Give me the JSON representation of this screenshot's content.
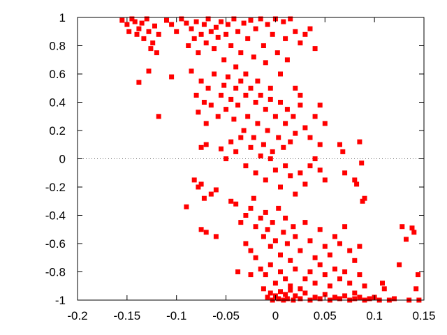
{
  "chart_data": {
    "type": "scatter",
    "title": "",
    "xlabel": "",
    "ylabel": "",
    "xlim": [
      -0.2,
      0.15
    ],
    "ylim": [
      -1,
      1
    ],
    "grid": false,
    "zero_line": true,
    "x_ticks": [
      "-0.2",
      "-0.15",
      "-0.1",
      "-0.05",
      "0",
      "0.05",
      "0.1",
      "0.15"
    ],
    "y_ticks": [
      "1",
      "0.8",
      "0.6",
      "0.4",
      "0.2",
      "0",
      "-0.2",
      "-0.4",
      "-0.6",
      "-0.8",
      "-1"
    ],
    "marker": "square",
    "color": "#ff0000",
    "series": [
      {
        "points": [
          [
            -0.155,
            0.98
          ],
          [
            -0.15,
            0.95
          ],
          [
            -0.148,
            0.9
          ],
          [
            -0.145,
            0.99
          ],
          [
            -0.142,
            0.97
          ],
          [
            -0.14,
            0.88
          ],
          [
            -0.138,
            0.92
          ],
          [
            -0.135,
            0.96
          ],
          [
            -0.133,
            0.85
          ],
          [
            -0.13,
            0.99
          ],
          [
            -0.128,
            0.9
          ],
          [
            -0.126,
            0.78
          ],
          [
            -0.124,
            0.82
          ],
          [
            -0.122,
            0.94
          ],
          [
            -0.12,
            0.75
          ],
          [
            -0.118,
            0.88
          ],
          [
            -0.11,
            0.98
          ],
          [
            -0.105,
            0.95
          ],
          [
            -0.1,
            0.9
          ],
          [
            -0.095,
            0.99
          ],
          [
            -0.09,
            0.96
          ],
          [
            -0.088,
            0.8
          ],
          [
            -0.085,
            0.92
          ],
          [
            -0.082,
            0.85
          ],
          [
            -0.08,
            0.97
          ],
          [
            -0.078,
            0.75
          ],
          [
            -0.075,
            0.88
          ],
          [
            -0.072,
            0.95
          ],
          [
            -0.07,
            0.82
          ],
          [
            -0.068,
            0.99
          ],
          [
            -0.065,
            0.9
          ],
          [
            -0.062,
            0.78
          ],
          [
            -0.06,
            0.93
          ],
          [
            -0.058,
            0.86
          ],
          [
            -0.055,
            0.97
          ],
          [
            -0.052,
            0.7
          ],
          [
            -0.05,
            0.88
          ],
          [
            -0.048,
            0.95
          ],
          [
            -0.045,
            0.8
          ],
          [
            -0.042,
            0.99
          ],
          [
            -0.04,
            0.65
          ],
          [
            -0.038,
            0.9
          ],
          [
            -0.035,
            0.75
          ],
          [
            -0.032,
            0.96
          ],
          [
            -0.03,
            0.6
          ],
          [
            -0.028,
            0.85
          ],
          [
            -0.025,
            0.98
          ],
          [
            -0.022,
            0.72
          ],
          [
            -0.02,
            0.92
          ],
          [
            -0.018,
            0.55
          ],
          [
            -0.015,
            0.99
          ],
          [
            -0.012,
            0.8
          ],
          [
            -0.01,
            0.68
          ],
          [
            -0.008,
            0.95
          ],
          [
            -0.005,
            0.5
          ],
          [
            -0.003,
            0.88
          ],
          [
            0.0,
            0.99
          ],
          [
            0.002,
            0.75
          ],
          [
            0.005,
            0.6
          ],
          [
            0.008,
            0.97
          ],
          [
            0.01,
            0.85
          ],
          [
            0.012,
            0.7
          ],
          [
            0.015,
            0.99
          ],
          [
            0.02,
            0.9
          ],
          [
            0.025,
            0.82
          ],
          [
            0.03,
            0.88
          ],
          [
            0.035,
            0.92
          ],
          [
            0.04,
            0.78
          ],
          [
            -0.138,
            0.54
          ],
          [
            -0.128,
            0.62
          ],
          [
            -0.118,
            0.3
          ],
          [
            -0.105,
            0.58
          ],
          [
            -0.085,
            0.62
          ],
          [
            -0.08,
            0.45
          ],
          [
            -0.078,
            0.33
          ],
          [
            -0.075,
            0.55
          ],
          [
            -0.072,
            0.4
          ],
          [
            -0.07,
            0.25
          ],
          [
            -0.068,
            0.5
          ],
          [
            -0.065,
            0.38
          ],
          [
            -0.062,
            0.6
          ],
          [
            -0.058,
            0.3
          ],
          [
            -0.055,
            0.45
          ],
          [
            -0.052,
            0.52
          ],
          [
            -0.05,
            0.35
          ],
          [
            -0.048,
            0.58
          ],
          [
            -0.045,
            0.42
          ],
          [
            -0.042,
            0.28
          ],
          [
            -0.04,
            0.5
          ],
          [
            -0.038,
            0.38
          ],
          [
            -0.035,
            0.55
          ],
          [
            -0.032,
            0.2
          ],
          [
            -0.03,
            0.45
          ],
          [
            -0.028,
            0.3
          ],
          [
            -0.025,
            0.5
          ],
          [
            -0.022,
            0.15
          ],
          [
            -0.02,
            0.4
          ],
          [
            -0.018,
            0.25
          ],
          [
            -0.015,
            0.45
          ],
          [
            -0.012,
            0.1
          ],
          [
            -0.01,
            0.35
          ],
          [
            -0.008,
            0.2
          ],
          [
            -0.005,
            0.42
          ],
          [
            -0.003,
            0.05
          ],
          [
            0.0,
            0.3
          ],
          [
            0.003,
            0.15
          ],
          [
            0.005,
            0.4
          ],
          [
            0.008,
            0.08
          ],
          [
            0.01,
            0.25
          ],
          [
            0.012,
            0.35
          ],
          [
            0.015,
            0.12
          ],
          [
            0.018,
            0.3
          ],
          [
            0.02,
            0.18
          ],
          [
            0.025,
            0.38
          ],
          [
            0.03,
            0.22
          ],
          [
            0.035,
            0.15
          ],
          [
            0.04,
            0.3
          ],
          [
            0.045,
            0.1
          ],
          [
            0.05,
            0.25
          ],
          [
            0.045,
            0.38
          ],
          [
            0.025,
            0.45
          ],
          [
            0.02,
            0.5
          ],
          [
            -0.075,
            0.08
          ],
          [
            -0.07,
            0.1
          ],
          [
            -0.055,
            0.07
          ],
          [
            -0.05,
            0.0
          ],
          [
            -0.045,
            0.12
          ],
          [
            -0.04,
            0.05
          ],
          [
            -0.035,
            0.15
          ],
          [
            -0.03,
            -0.05
          ],
          [
            -0.025,
            0.08
          ],
          [
            -0.02,
            -0.1
          ],
          [
            -0.015,
            0.02
          ],
          [
            -0.01,
            -0.15
          ],
          [
            -0.005,
            0.0
          ],
          [
            0.0,
            -0.08
          ],
          [
            0.005,
            -0.2
          ],
          [
            0.01,
            -0.05
          ],
          [
            0.015,
            -0.12
          ],
          [
            0.02,
            -0.25
          ],
          [
            0.025,
            -0.1
          ],
          [
            0.03,
            -0.18
          ],
          [
            0.035,
            -0.05
          ],
          [
            0.04,
            0.0
          ],
          [
            0.045,
            -0.08
          ],
          [
            0.05,
            -0.15
          ],
          [
            0.065,
            0.1
          ],
          [
            0.068,
            0.05
          ],
          [
            0.07,
            -0.1
          ],
          [
            0.08,
            -0.15
          ],
          [
            0.085,
            0.12
          ],
          [
            0.087,
            -0.03
          ],
          [
            0.082,
            -0.18
          ],
          [
            -0.082,
            -0.15
          ],
          [
            -0.078,
            -0.2
          ],
          [
            -0.075,
            -0.18
          ],
          [
            -0.072,
            -0.28
          ],
          [
            -0.065,
            -0.25
          ],
          [
            -0.06,
            -0.22
          ],
          [
            -0.045,
            -0.3
          ],
          [
            -0.04,
            -0.32
          ],
          [
            -0.035,
            -0.45
          ],
          [
            -0.03,
            -0.4
          ],
          [
            -0.025,
            -0.35
          ],
          [
            -0.022,
            -0.28
          ],
          [
            -0.02,
            -0.48
          ],
          [
            -0.015,
            -0.42
          ],
          [
            -0.012,
            -0.55
          ],
          [
            -0.01,
            -0.38
          ],
          [
            -0.008,
            -0.5
          ],
          [
            -0.005,
            -0.62
          ],
          [
            -0.003,
            -0.45
          ],
          [
            0.0,
            -0.58
          ],
          [
            0.003,
            -0.35
          ],
          [
            0.005,
            -0.68
          ],
          [
            0.008,
            -0.52
          ],
          [
            0.01,
            -0.42
          ],
          [
            0.012,
            -0.6
          ],
          [
            0.015,
            -0.72
          ],
          [
            0.018,
            -0.48
          ],
          [
            0.02,
            -0.55
          ],
          [
            0.025,
            -0.65
          ],
          [
            0.03,
            -0.45
          ],
          [
            0.035,
            -0.58
          ],
          [
            0.04,
            -0.7
          ],
          [
            0.045,
            -0.5
          ],
          [
            0.05,
            -0.62
          ],
          [
            0.055,
            -0.68
          ],
          [
            0.06,
            -0.55
          ],
          [
            0.065,
            -0.6
          ],
          [
            0.07,
            -0.48
          ],
          [
            0.075,
            -0.65
          ],
          [
            0.08,
            -0.72
          ],
          [
            0.085,
            -0.62
          ],
          [
            0.088,
            -0.3
          ],
          [
            0.09,
            -0.28
          ],
          [
            -0.09,
            -0.34
          ],
          [
            -0.075,
            -0.5
          ],
          [
            -0.07,
            -0.52
          ],
          [
            -0.06,
            -0.55
          ],
          [
            -0.03,
            -0.6
          ],
          [
            -0.025,
            -0.65
          ],
          [
            -0.02,
            -0.7
          ],
          [
            -0.015,
            -0.78
          ],
          [
            -0.01,
            -0.82
          ],
          [
            -0.005,
            -0.75
          ],
          [
            0.0,
            -0.88
          ],
          [
            0.005,
            -0.8
          ],
          [
            0.01,
            -0.85
          ],
          [
            0.015,
            -0.9
          ],
          [
            0.02,
            -0.78
          ],
          [
            0.025,
            -0.92
          ],
          [
            0.03,
            -0.85
          ],
          [
            0.035,
            -0.8
          ],
          [
            0.04,
            -0.88
          ],
          [
            0.045,
            -0.75
          ],
          [
            0.05,
            -0.82
          ],
          [
            0.055,
            -0.9
          ],
          [
            0.06,
            -0.78
          ],
          [
            0.065,
            -0.85
          ],
          [
            0.07,
            -0.8
          ],
          [
            0.075,
            -0.88
          ],
          [
            0.08,
            -0.95
          ],
          [
            0.085,
            -0.82
          ],
          [
            0.09,
            -0.9
          ],
          [
            -0.038,
            -0.8
          ],
          [
            -0.025,
            -0.82
          ],
          [
            -0.012,
            -0.92
          ],
          [
            -0.008,
            -0.98
          ],
          [
            -0.005,
            -0.95
          ],
          [
            -0.003,
            -1.0
          ],
          [
            0.0,
            -0.97
          ],
          [
            0.003,
            -0.99
          ],
          [
            0.005,
            -0.94
          ],
          [
            0.008,
            -1.0
          ],
          [
            0.01,
            -0.96
          ],
          [
            0.012,
            -0.99
          ],
          [
            0.015,
            -0.93
          ],
          [
            0.018,
            -1.0
          ],
          [
            0.02,
            -0.97
          ],
          [
            0.025,
            -0.99
          ],
          [
            0.03,
            -0.95
          ],
          [
            0.035,
            -1.0
          ],
          [
            0.04,
            -0.98
          ],
          [
            0.045,
            -0.99
          ],
          [
            0.05,
            -0.96
          ],
          [
            0.055,
            -1.0
          ],
          [
            0.06,
            -0.98
          ],
          [
            0.065,
            -0.99
          ],
          [
            0.07,
            -0.97
          ],
          [
            0.075,
            -1.0
          ],
          [
            0.08,
            -0.99
          ],
          [
            0.085,
            -0.98
          ],
          [
            0.09,
            -1.0
          ],
          [
            0.095,
            -0.99
          ],
          [
            0.1,
            -0.98
          ],
          [
            0.105,
            -1.0
          ],
          [
            0.108,
            -0.88
          ],
          [
            0.11,
            -0.92
          ],
          [
            0.115,
            -1.0
          ],
          [
            0.12,
            -0.99
          ],
          [
            0.125,
            -0.75
          ],
          [
            0.128,
            -0.48
          ],
          [
            0.132,
            -0.57
          ],
          [
            0.135,
            -1.0
          ],
          [
            0.138,
            -0.49
          ],
          [
            0.14,
            -0.52
          ],
          [
            0.142,
            -0.92
          ],
          [
            0.144,
            -0.82
          ],
          [
            0.145,
            -1.0
          ]
        ]
      }
    ]
  }
}
